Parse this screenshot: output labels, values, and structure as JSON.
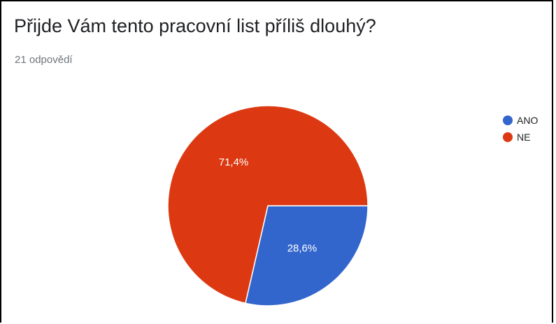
{
  "header": {
    "title": "Přijde Vám tento pracovní list příliš dlouhý?",
    "subtitle": "21 odpovědí"
  },
  "chart_data": {
    "type": "pie",
    "categories": [
      "ANO",
      "NE"
    ],
    "values": [
      28.6,
      71.4
    ],
    "data_labels": [
      "28,6%",
      "71,4%"
    ],
    "colors": [
      "#3366cc",
      "#dc3912"
    ],
    "label_color": "#ffffff",
    "legend_position": "right",
    "start_angle_deg": 90,
    "direction": "clockwise"
  }
}
